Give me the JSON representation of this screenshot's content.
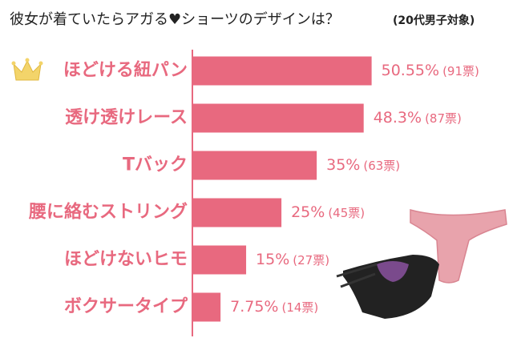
{
  "chart_data": {
    "type": "bar",
    "orientation": "horizontal",
    "title": "彼女が着ていたらアガる♥ショーツのデザインは？",
    "subtitle": "(20代男子対象)",
    "categories": [
      "ほどける紐パン",
      "透け透けレース",
      "Tバック",
      "腰に絡むストリング",
      "ほどけないヒモ",
      "ボクサータイプ"
    ],
    "values": [
      50.55,
      48.3,
      35,
      25,
      15,
      7.75
    ],
    "value_labels": [
      "50.55%",
      "48.3%",
      "35%",
      "25%",
      "15%",
      "7.75%"
    ],
    "vote_labels": [
      "(91票)",
      "(87票)",
      "(63票)",
      "(45票)",
      "(27票)",
      "(14票)"
    ],
    "color": "#e8697f",
    "xlim": [
      0,
      52
    ]
  }
}
